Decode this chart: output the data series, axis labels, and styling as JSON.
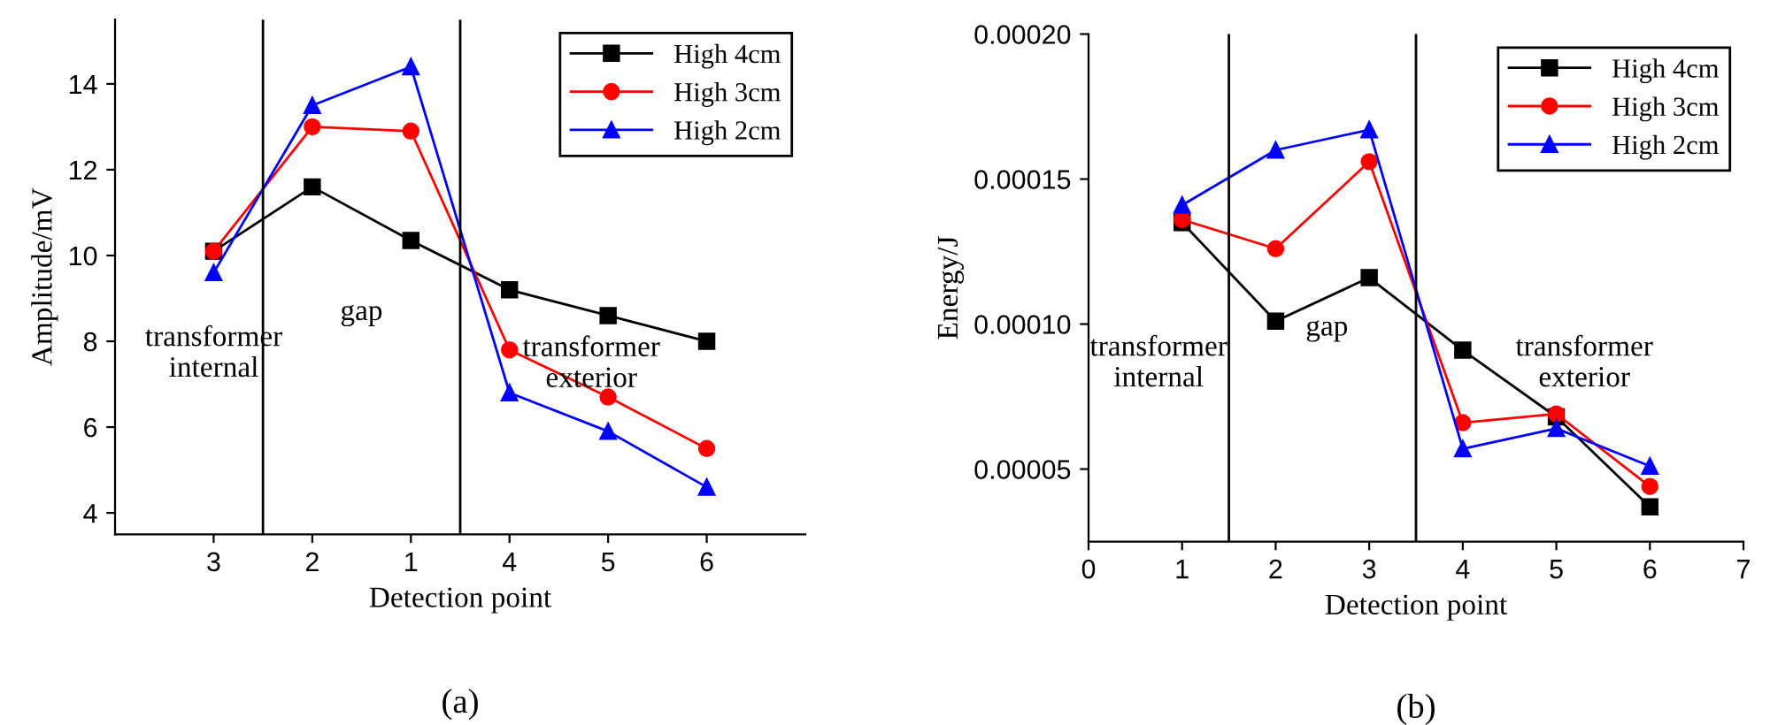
{
  "chart_data": [
    {
      "type": "line",
      "xlabel": "Detection point",
      "ylabel": "Amplitude/mV",
      "categories": [
        "3",
        "2",
        "1",
        "4",
        "5",
        "6"
      ],
      "series": [
        {
          "name": "High 4cm",
          "color": "#000000",
          "marker": "square",
          "values": [
            10.1,
            11.6,
            10.35,
            9.2,
            8.6,
            8.0
          ]
        },
        {
          "name": "High 3cm",
          "color": "#ff0000",
          "marker": "circle",
          "values": [
            10.1,
            13.0,
            12.9,
            7.8,
            6.7,
            5.5
          ]
        },
        {
          "name": "High 2cm",
          "color": "#0000ff",
          "marker": "triangle",
          "values": [
            9.6,
            13.5,
            14.4,
            6.8,
            5.9,
            4.6
          ]
        }
      ],
      "ylim": [
        3.5,
        15.5
      ],
      "yticks": [
        4,
        6,
        8,
        10,
        12,
        14
      ],
      "annotations": [
        "transformer\ninternal",
        "gap",
        "transformer\nexterior",
        "(a)"
      ],
      "legend": "top right",
      "grid": false,
      "line_style": "solid"
    },
    {
      "type": "line",
      "xlabel": "Detection point",
      "ylabel": "Energy/J",
      "x": [
        1,
        2,
        3,
        4,
        5,
        6
      ],
      "series": [
        {
          "name": "High 4cm",
          "color": "#000000",
          "marker": "square",
          "values": [
            0.000135,
            0.000101,
            0.000116,
            9.1e-05,
            6.8e-05,
            3.7e-05
          ]
        },
        {
          "name": "High 3cm",
          "color": "#ff0000",
          "marker": "circle",
          "values": [
            0.000136,
            0.000126,
            0.000156,
            6.6e-05,
            6.9e-05,
            4.4e-05
          ]
        },
        {
          "name": "High 2cm",
          "color": "#0000ff",
          "marker": "triangle",
          "values": [
            0.000141,
            0.00016,
            0.000167,
            5.7e-05,
            6.4e-05,
            5.1e-05
          ]
        }
      ],
      "xlim": [
        0,
        7
      ],
      "xticks": [
        0,
        1,
        2,
        3,
        4,
        5,
        6,
        7
      ],
      "ylim": [
        2.5e-05,
        0.0002
      ],
      "yticks": [
        {
          "value": 5e-05,
          "label": "0.00005"
        },
        {
          "value": 0.0001,
          "label": "0.00010"
        },
        {
          "value": 0.00015,
          "label": "0.00015"
        },
        {
          "value": 0.0002,
          "label": "0.00020"
        }
      ],
      "ref_lines": [
        {
          "axis": "x",
          "value": 1.5,
          "color": "#000000"
        },
        {
          "axis": "x",
          "value": 3.5,
          "color": "#000000"
        }
      ],
      "annotations": [
        "transformer\ninternal",
        "gap",
        "transformer\nexterior",
        "(b)"
      ],
      "legend": "top right",
      "grid": false,
      "line_style": "solid"
    }
  ]
}
